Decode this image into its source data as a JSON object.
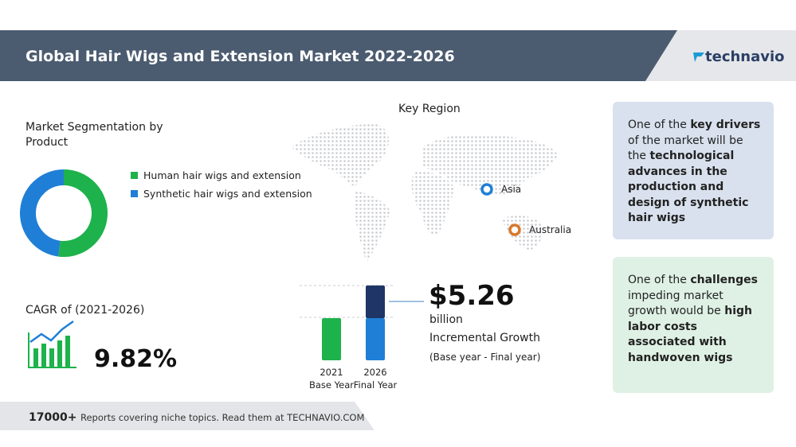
{
  "header": {
    "title": "Global Hair Wigs and Extension Market 2022-2026",
    "logo": "technavio"
  },
  "segmentation": {
    "title": "Market Segmentation by Product",
    "segments": [
      {
        "name": "Human hair wigs and extension",
        "color": "#1db24b",
        "value": 52
      },
      {
        "name": "Synthetic hair wigs and extension",
        "color": "#1f7fd6",
        "value": 48
      }
    ]
  },
  "region": {
    "title": "Key Region",
    "markers": [
      {
        "name": "Asia",
        "color": "#1f7fd6"
      },
      {
        "name": "Australia",
        "color": "#d9782b"
      }
    ]
  },
  "cagr": {
    "label": "CAGR of (2021-2026)",
    "value": "9.82%"
  },
  "growth": {
    "value": "$5.26",
    "unit": "billion",
    "label": "Incremental Growth",
    "note": "(Base year - Final year)",
    "bars": [
      {
        "year": "2021",
        "label": "Base Year",
        "segments": [
          6.8
        ],
        "colors": [
          "#1db24b"
        ]
      },
      {
        "year": "2026",
        "label": "Final Year",
        "segments": [
          6.8,
          5.26
        ],
        "colors": [
          "#1f7fd6",
          "#1e3566"
        ]
      }
    ]
  },
  "drivers": {
    "text": [
      {
        "text": "One of the "
      },
      {
        "text": "key drivers",
        "bold": true
      },
      {
        "text": " of the market will be the "
      },
      {
        "text": "technological advances in the production and design of synthetic hair wigs",
        "bold": true
      }
    ]
  },
  "challenges": {
    "text": [
      {
        "text": "One of the "
      },
      {
        "text": "challenges",
        "bold": true
      },
      {
        "text": " impeding market growth would be "
      },
      {
        "text": "high labor costs associated with handwoven wigs",
        "bold": true
      }
    ]
  },
  "footer": {
    "count": "17000+",
    "text": "Reports covering niche topics. Read them at TECHNAVIO.COM"
  }
}
